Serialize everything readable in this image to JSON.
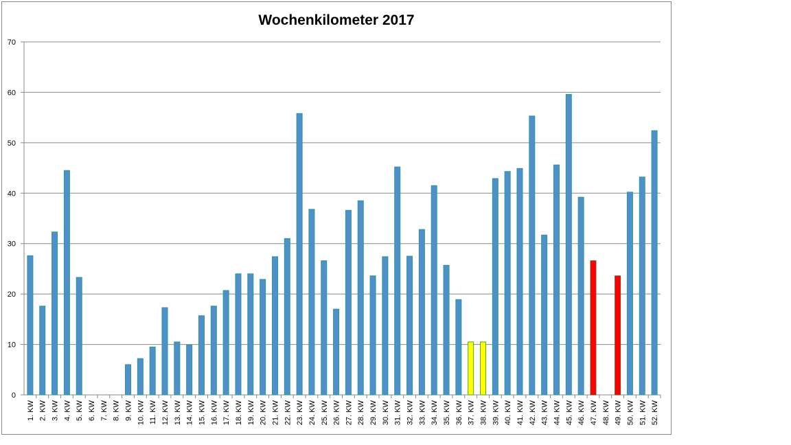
{
  "chart_data": {
    "type": "bar",
    "title": "Wochenkilometer 2017",
    "xlabel": "",
    "ylabel": "",
    "ylim": [
      0,
      70
    ],
    "yticks": [
      0,
      10,
      20,
      30,
      40,
      50,
      60,
      70
    ],
    "grid": true,
    "legend": "none",
    "categories": [
      "1. KW",
      "2. KW",
      "3. KW",
      "4. KW",
      "5. KW",
      "6. KW",
      "7. KW",
      "8. KW",
      "9. KW",
      "10. KW",
      "11. KW",
      "12. KW",
      "13. KW",
      "14. KW",
      "15. KW",
      "16. KW",
      "17. KW",
      "18. KW",
      "19. KW",
      "20. KW",
      "21. KW",
      "22. KW",
      "23. KW",
      "24. KW",
      "25. KW",
      "26. KW",
      "27. KW",
      "28. KW",
      "29. KW",
      "30. KW",
      "31. KW",
      "32. KW",
      "33. KW",
      "34. KW",
      "35. KW",
      "36. KW",
      "37. KW",
      "38. KW",
      "39. KW",
      "40. KW",
      "41. KW",
      "42. KW",
      "43. KW",
      "44. KW",
      "45. KW",
      "46. KW",
      "47. KW",
      "48. KW",
      "49. KW",
      "50. KW",
      "51. KW",
      "52. KW"
    ],
    "values": [
      27.6,
      17.6,
      32.3,
      44.5,
      23.3,
      0,
      0,
      0,
      6.0,
      7.2,
      9.5,
      17.3,
      10.5,
      9.9,
      15.7,
      17.6,
      20.7,
      24.0,
      24.0,
      22.9,
      27.4,
      31.0,
      55.8,
      36.8,
      26.6,
      17.0,
      36.6,
      38.5,
      23.6,
      27.4,
      45.2,
      27.5,
      32.8,
      41.5,
      25.7,
      18.9,
      10.5,
      10.5,
      42.9,
      44.3,
      44.9,
      55.3,
      31.7,
      45.6,
      59.6,
      39.2,
      26.6,
      0,
      23.6,
      40.2,
      43.2,
      52.4
    ],
    "highlights": {
      "37. KW": "yellow",
      "38. KW": "yellow",
      "47. KW": "red",
      "49. KW": "red"
    }
  },
  "colors": {
    "default_fill": "#4f8fcc",
    "default_stroke": "#2a9a96",
    "yellow_fill": "#ffff00",
    "yellow_stroke": "#4caf1a",
    "red_fill": "#ff0000",
    "red_stroke": "#7a4a2a",
    "grid": "#888888"
  }
}
